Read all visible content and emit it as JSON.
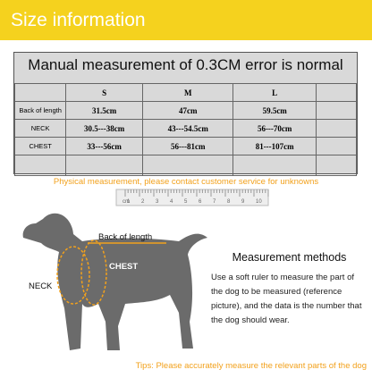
{
  "header": {
    "title": "Size information"
  },
  "table": {
    "title": "Manual measurement of 0.3CM error is normal",
    "sizes": [
      "S",
      "M",
      "L"
    ],
    "rows": [
      {
        "label": "Back of length",
        "values": [
          "31.5cm",
          "47cm",
          "59.5cm"
        ]
      },
      {
        "label": "NECK",
        "values": [
          "30.5---38cm",
          "43---54.5cm",
          "56---70cm"
        ]
      },
      {
        "label": "CHEST",
        "values": [
          "33---56cm",
          "56---81cm",
          "81---107cm"
        ]
      }
    ]
  },
  "notice": "Physical measurement, please contact customer service for unknowns",
  "ruler": {
    "labels": [
      "cm",
      "1",
      "2",
      "3",
      "4",
      "5",
      "6",
      "7",
      "8",
      "9",
      "10"
    ]
  },
  "diagram": {
    "back_label": "Back of length",
    "chest_label": "CHEST",
    "neck_label": "NECK"
  },
  "methods": {
    "title": "Measurement methods",
    "text": "Use a soft ruler to measure the part of the dog to be measured (reference picture), and the data is the number that the dog should wear."
  },
  "tips": "Tips: Please accurately measure the relevant parts of the dog"
}
